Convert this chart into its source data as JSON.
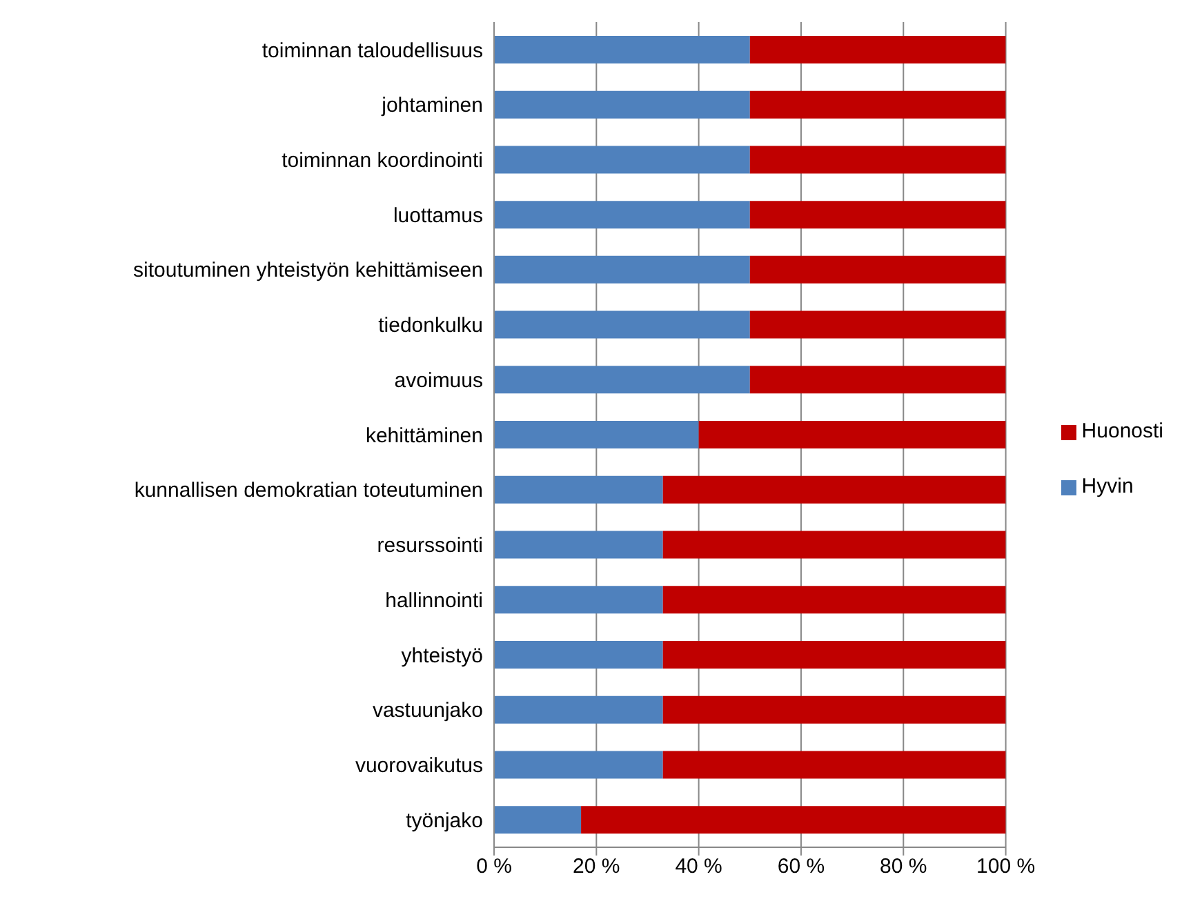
{
  "chart_data": {
    "type": "bar",
    "orientation": "horizontal",
    "stacked": true,
    "categories": [
      "toiminnan taloudellisuus",
      "johtaminen",
      "toiminnan koordinointi",
      "luottamus",
      "sitoutuminen yhteistyön kehittämiseen",
      "tiedonkulku",
      "avoimuus",
      "kehittäminen",
      "kunnallisen demokratian toteutuminen",
      "resurssointi",
      "hallinnointi",
      "yhteistyö",
      "vastuunjako",
      "vuorovaikutus",
      "työnjako"
    ],
    "series": [
      {
        "name": "Hyvin",
        "color": "#4f81bd",
        "values": [
          50,
          50,
          50,
          50,
          50,
          50,
          50,
          40,
          33,
          33,
          33,
          33,
          33,
          33,
          17
        ]
      },
      {
        "name": "Huonosti",
        "color": "#c00000",
        "values": [
          50,
          50,
          50,
          50,
          50,
          50,
          50,
          60,
          67,
          67,
          67,
          67,
          67,
          67,
          83
        ]
      }
    ],
    "xlim": [
      0,
      100
    ],
    "xticks": [
      {
        "value": 0,
        "label": "0 %"
      },
      {
        "value": 20,
        "label": "20 %"
      },
      {
        "value": 40,
        "label": "40 %"
      },
      {
        "value": 60,
        "label": "60 %"
      },
      {
        "value": 80,
        "label": "80 %"
      },
      {
        "value": 100,
        "label": "100 %"
      }
    ],
    "grid": "x",
    "legend": "right"
  }
}
